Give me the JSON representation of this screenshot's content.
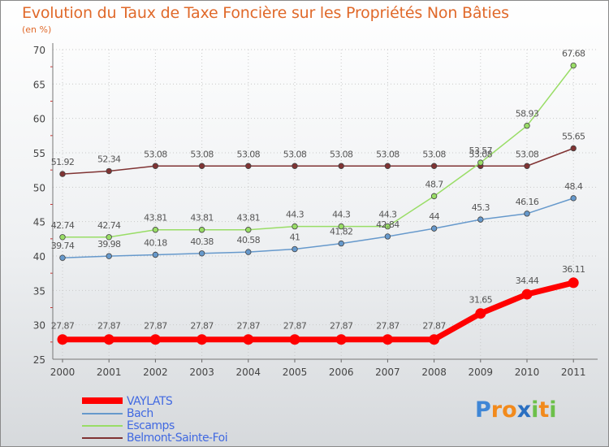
{
  "header": {
    "title": "Evolution du Taux de Taxe Foncière sur les Propriétés Non Bâties",
    "subtitle": "(en %)"
  },
  "chart_data": {
    "type": "line",
    "title": "Evolution du Taux de Taxe Foncière sur les Propriétés Non Bâties",
    "ylabel": "(en %)",
    "xlabel": "",
    "ylim": [
      25,
      70
    ],
    "yticks": [
      "25",
      "30",
      "35",
      "40",
      "45",
      "50",
      "55",
      "60",
      "65",
      "70"
    ],
    "categories": [
      "2000",
      "2001",
      "2002",
      "2003",
      "2004",
      "2005",
      "2006",
      "2007",
      "2008",
      "2009",
      "2010",
      "2011"
    ],
    "legend_position": "bottom-left",
    "series": [
      {
        "name": "VAYLATS",
        "color": "#ff0000",
        "values": [
          27.87,
          27.87,
          27.87,
          27.87,
          27.87,
          27.87,
          27.87,
          27.87,
          27.87,
          31.65,
          34.44,
          36.11
        ],
        "labels": [
          "27.87",
          "27.87",
          "27.87",
          "27.87",
          "27.87",
          "27.87",
          "27.87",
          "27.87",
          "27.87",
          "31.65",
          "34.44",
          "36.11"
        ]
      },
      {
        "name": "Bach",
        "color": "#6699cc",
        "values": [
          39.74,
          39.98,
          40.18,
          40.38,
          40.58,
          41,
          41.82,
          42.84,
          44,
          45.3,
          46.16,
          48.4
        ],
        "labels": [
          "39.74",
          "39.98",
          "40.18",
          "40.38",
          "40.58",
          "41",
          "41.82",
          "42.84",
          "44",
          "45.3",
          "46.16",
          "48.4"
        ]
      },
      {
        "name": "Escamps",
        "color": "#99dd66",
        "values": [
          42.74,
          42.74,
          43.81,
          43.81,
          43.81,
          44.3,
          44.3,
          44.3,
          48.7,
          53.57,
          58.93,
          67.68
        ],
        "labels": [
          "42.74",
          "42.74",
          "43.81",
          "43.81",
          "43.81",
          "44.3",
          "44.3",
          "44.3",
          "48.7",
          "53.57",
          "58.93",
          "67.68"
        ]
      },
      {
        "name": "Belmont-Sainte-Foi",
        "color": "#803333",
        "values": [
          51.92,
          52.34,
          53.08,
          53.08,
          53.08,
          53.08,
          53.08,
          53.08,
          53.08,
          53.08,
          53.08,
          55.65
        ],
        "labels": [
          "51.92",
          "52.34",
          "53.08",
          "53.08",
          "53.08",
          "53.08",
          "53.08",
          "53.08",
          "53.08",
          "53.08",
          "53.08",
          "55.65"
        ]
      }
    ]
  },
  "legend": {
    "items": [
      {
        "label": "VAYLATS",
        "color": "#ff0000"
      },
      {
        "label": "Bach",
        "color": "#6699cc"
      },
      {
        "label": "Escamps",
        "color": "#99dd66"
      },
      {
        "label": "Belmont-Sainte-Foi",
        "color": "#803333"
      }
    ]
  },
  "logo": {
    "text": "Proxiti",
    "letters": [
      "P",
      "r",
      "o",
      "x",
      "i",
      "t",
      "i"
    ],
    "colors": [
      "#3f86d6",
      "#f28a1c",
      "#f28a1c",
      "#2a6fc1",
      "#6cc04a",
      "#f28a1c",
      "#6cc04a"
    ]
  }
}
